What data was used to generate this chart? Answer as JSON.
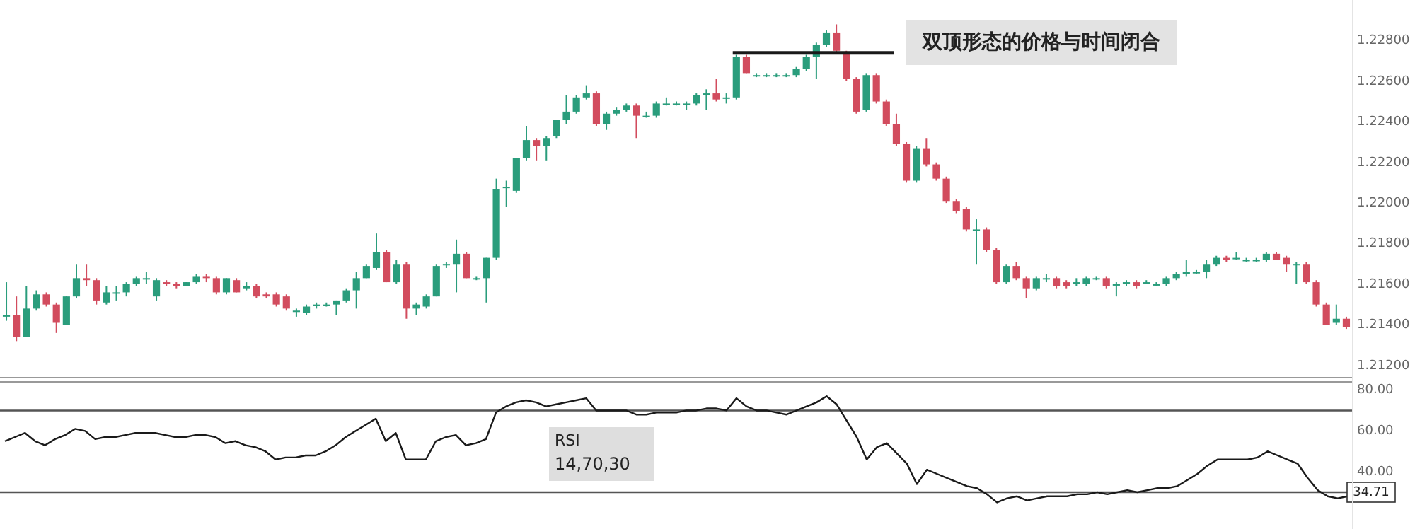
{
  "chart_data": [
    {
      "type": "candlestick",
      "tick_labels": "y",
      "categories": [
        null,
        null,
        null,
        null,
        null,
        null,
        null,
        null,
        null,
        null,
        null,
        null,
        null,
        null,
        null,
        null,
        null,
        null,
        null,
        null,
        null,
        null,
        null,
        null,
        null,
        null,
        null,
        null,
        null,
        null,
        null,
        null,
        null,
        null,
        null,
        null,
        null,
        null,
        null,
        null,
        null,
        null,
        null,
        null,
        null,
        null,
        null,
        null,
        null,
        null,
        null,
        null,
        null,
        null,
        null,
        null,
        null,
        null,
        null,
        null,
        null,
        null,
        null,
        null,
        null,
        null,
        null,
        null,
        null,
        null,
        null,
        null,
        null,
        null,
        null,
        null,
        null,
        null,
        null,
        null,
        null,
        null,
        null,
        null,
        null,
        null,
        null,
        null,
        null,
        null,
        null,
        null,
        null,
        null,
        null,
        null,
        null,
        null,
        null,
        null,
        null,
        null,
        null,
        null,
        null,
        null,
        null,
        null,
        null,
        null,
        null,
        null,
        null,
        null,
        null,
        null,
        null,
        null,
        null,
        null,
        null,
        null,
        null,
        null,
        null,
        null,
        null,
        null,
        null,
        null,
        null,
        null,
        null,
        null,
        null
      ],
      "ohlc": [
        [
          1.2144,
          1.2161,
          1.2142,
          1.2145
        ],
        [
          1.2145,
          1.2154,
          1.2132,
          1.2134
        ],
        [
          1.2134,
          1.2159,
          1.2134,
          1.2148
        ],
        [
          1.2148,
          1.2157,
          1.2147,
          1.2155
        ],
        [
          1.2155,
          1.2156,
          1.2149,
          1.215
        ],
        [
          1.215,
          1.2151,
          1.2136,
          1.2141
        ],
        [
          1.214,
          1.2154,
          1.214,
          1.2154
        ],
        [
          1.2154,
          1.217,
          1.2153,
          1.2163
        ],
        [
          1.2163,
          1.217,
          1.2159,
          1.2162
        ],
        [
          1.2162,
          1.2163,
          1.215,
          1.2152
        ],
        [
          1.2151,
          1.2159,
          1.215,
          1.2156
        ],
        [
          1.2156,
          1.2159,
          1.2152,
          1.2156
        ],
        [
          1.2156,
          1.2161,
          1.2154,
          1.216
        ],
        [
          1.216,
          1.2164,
          1.2159,
          1.2163
        ],
        [
          1.2163,
          1.2166,
          1.216,
          1.2163
        ],
        [
          1.2154,
          1.2163,
          1.2152,
          1.2162
        ],
        [
          1.2161,
          1.2162,
          1.2159,
          1.216
        ],
        [
          1.216,
          1.2161,
          1.2158,
          1.2159
        ],
        [
          1.2159,
          1.2161,
          1.2159,
          1.2161
        ],
        [
          1.2161,
          1.2165,
          1.216,
          1.2164
        ],
        [
          1.2164,
          1.2165,
          1.2161,
          1.2163
        ],
        [
          1.2163,
          1.2164,
          1.2155,
          1.2156
        ],
        [
          1.2156,
          1.2163,
          1.2155,
          1.2163
        ],
        [
          1.2162,
          1.2163,
          1.2156,
          1.2156
        ],
        [
          1.2158,
          1.2161,
          1.2157,
          1.2159
        ],
        [
          1.2159,
          1.216,
          1.2153,
          1.2154
        ],
        [
          1.2155,
          1.2156,
          1.2153,
          1.2154
        ],
        [
          1.2155,
          1.2156,
          1.2149,
          1.215
        ],
        [
          1.2154,
          1.2155,
          1.2147,
          1.2148
        ],
        [
          1.2147,
          1.2148,
          1.2144,
          1.2147
        ],
        [
          1.2146,
          1.215,
          1.2145,
          1.2149
        ],
        [
          1.215,
          1.2151,
          1.2148,
          1.215
        ],
        [
          1.215,
          1.2151,
          1.2149,
          1.215
        ],
        [
          1.215,
          1.2152,
          1.2145,
          1.2152
        ],
        [
          1.2152,
          1.2158,
          1.2151,
          1.2157
        ],
        [
          1.2157,
          1.2166,
          1.2148,
          1.2163
        ],
        [
          1.2163,
          1.217,
          1.2163,
          1.2169
        ],
        [
          1.2168,
          1.2185,
          1.2167,
          1.2176
        ],
        [
          1.2176,
          1.2177,
          1.2161,
          1.2161
        ],
        [
          1.2161,
          1.2172,
          1.216,
          1.217
        ],
        [
          1.217,
          1.2171,
          1.2143,
          1.2148
        ],
        [
          1.2148,
          1.2151,
          1.2145,
          1.215
        ],
        [
          1.2149,
          1.2155,
          1.2148,
          1.2154
        ],
        [
          1.2154,
          1.217,
          1.2154,
          1.2169
        ],
        [
          1.217,
          1.2171,
          1.2168,
          1.217
        ],
        [
          1.217,
          1.2182,
          1.2156,
          1.2175
        ],
        [
          1.2175,
          1.2176,
          1.2163,
          1.2163
        ],
        [
          1.2163,
          1.2164,
          1.2162,
          1.2163
        ],
        [
          1.2163,
          1.2173,
          1.2151,
          1.2173
        ],
        [
          1.2173,
          1.2212,
          1.2172,
          1.2207
        ],
        [
          1.2208,
          1.2211,
          1.2198,
          1.2208
        ],
        [
          1.2206,
          1.2222,
          1.2205,
          1.2222
        ],
        [
          1.2222,
          1.2238,
          1.2221,
          1.2231
        ],
        [
          1.2231,
          1.2232,
          1.2221,
          1.2228
        ],
        [
          1.2228,
          1.2233,
          1.2221,
          1.2232
        ],
        [
          1.2233,
          1.2241,
          1.2232,
          1.2241
        ],
        [
          1.2241,
          1.2253,
          1.2239,
          1.2245
        ],
        [
          1.2245,
          1.2253,
          1.2244,
          1.2252
        ],
        [
          1.2252,
          1.2258,
          1.2251,
          1.2254
        ],
        [
          1.2254,
          1.2255,
          1.2238,
          1.2239
        ],
        [
          1.2239,
          1.2245,
          1.2236,
          1.2244
        ],
        [
          1.2244,
          1.2247,
          1.2243,
          1.2246
        ],
        [
          1.2246,
          1.2249,
          1.2245,
          1.2248
        ],
        [
          1.2248,
          1.2249,
          1.2232,
          1.2243
        ],
        [
          1.2243,
          1.2245,
          1.2242,
          1.2243
        ],
        [
          1.2243,
          1.225,
          1.2242,
          1.2249
        ],
        [
          1.2249,
          1.2252,
          1.2248,
          1.2249
        ],
        [
          1.2249,
          1.225,
          1.2248,
          1.2249
        ],
        [
          1.2249,
          1.225,
          1.2246,
          1.2249
        ],
        [
          1.2249,
          1.2254,
          1.2248,
          1.2253
        ],
        [
          1.2253,
          1.2256,
          1.2246,
          1.2254
        ],
        [
          1.2254,
          1.2261,
          1.225,
          1.2251
        ],
        [
          1.2252,
          1.2254,
          1.2249,
          1.2252
        ],
        [
          1.2252,
          1.2273,
          1.2251,
          1.2272
        ],
        [
          1.2272,
          1.2273,
          1.2264,
          1.2264
        ],
        [
          1.2263,
          1.2264,
          1.2262,
          1.2263
        ],
        [
          1.2263,
          1.2264,
          1.2262,
          1.2263
        ],
        [
          1.2263,
          1.2264,
          1.2262,
          1.2263
        ],
        [
          1.2263,
          1.2264,
          1.2262,
          1.2263
        ],
        [
          1.2263,
          1.2267,
          1.2262,
          1.2266
        ],
        [
          1.2266,
          1.2273,
          1.2265,
          1.2272
        ],
        [
          1.2272,
          1.2279,
          1.2261,
          1.2278
        ],
        [
          1.2278,
          1.2285,
          1.2277,
          1.2284
        ],
        [
          1.2284,
          1.2288,
          1.2274,
          1.2275
        ],
        [
          1.2274,
          1.2275,
          1.226,
          1.2261
        ],
        [
          1.2261,
          1.2262,
          1.2244,
          1.2245
        ],
        [
          1.2246,
          1.2264,
          1.2245,
          1.2263
        ],
        [
          1.2263,
          1.2264,
          1.2249,
          1.225
        ],
        [
          1.225,
          1.2251,
          1.2238,
          1.2239
        ],
        [
          1.2239,
          1.2244,
          1.2228,
          1.2229
        ],
        [
          1.2229,
          1.223,
          1.221,
          1.2211
        ],
        [
          1.2211,
          1.2228,
          1.221,
          1.2227
        ],
        [
          1.2227,
          1.2232,
          1.2218,
          1.2219
        ],
        [
          1.2219,
          1.222,
          1.2211,
          1.2212
        ],
        [
          1.2212,
          1.2213,
          1.22,
          1.2201
        ],
        [
          1.2201,
          1.2202,
          1.2195,
          1.2196
        ],
        [
          1.2197,
          1.2198,
          1.2186,
          1.2187
        ],
        [
          1.2187,
          1.2192,
          1.217,
          1.2187
        ],
        [
          1.2187,
          1.2188,
          1.2176,
          1.2177
        ],
        [
          1.2177,
          1.2178,
          1.216,
          1.2161
        ],
        [
          1.2161,
          1.217,
          1.216,
          1.2169
        ],
        [
          1.2169,
          1.2171,
          1.2162,
          1.2163
        ],
        [
          1.2163,
          1.2164,
          1.2153,
          1.2158
        ],
        [
          1.2158,
          1.2164,
          1.2157,
          1.2163
        ],
        [
          1.2163,
          1.2165,
          1.2161,
          1.2163
        ],
        [
          1.2163,
          1.2164,
          1.2158,
          1.2159
        ],
        [
          1.2161,
          1.2162,
          1.2158,
          1.2159
        ],
        [
          1.2161,
          1.2163,
          1.2159,
          1.2161
        ],
        [
          1.216,
          1.2164,
          1.2159,
          1.2163
        ],
        [
          1.2163,
          1.2164,
          1.2162,
          1.2163
        ],
        [
          1.2163,
          1.2164,
          1.2158,
          1.2159
        ],
        [
          1.216,
          1.2161,
          1.2154,
          1.216
        ],
        [
          1.216,
          1.2162,
          1.2159,
          1.2161
        ],
        [
          1.2161,
          1.2162,
          1.2158,
          1.2159
        ],
        [
          1.2161,
          1.2162,
          1.216,
          1.2161
        ],
        [
          1.216,
          1.2161,
          1.2159,
          1.216
        ],
        [
          1.216,
          1.2164,
          1.2159,
          1.2163
        ],
        [
          1.2163,
          1.2166,
          1.2162,
          1.2165
        ],
        [
          1.2165,
          1.2172,
          1.2164,
          1.2166
        ],
        [
          1.2166,
          1.2167,
          1.2165,
          1.2166
        ],
        [
          1.2166,
          1.2172,
          1.2163,
          1.217
        ],
        [
          1.217,
          1.2174,
          1.2169,
          1.2173
        ],
        [
          1.2173,
          1.2174,
          1.2171,
          1.2172
        ],
        [
          1.2173,
          1.2176,
          1.2172,
          1.2173
        ],
        [
          1.2172,
          1.2173,
          1.2171,
          1.2172
        ],
        [
          1.2172,
          1.2173,
          1.2171,
          1.2172
        ],
        [
          1.2172,
          1.2176,
          1.2171,
          1.2175
        ],
        [
          1.2175,
          1.2176,
          1.2172,
          1.2172
        ],
        [
          1.2173,
          1.2174,
          1.2166,
          1.217
        ],
        [
          1.217,
          1.2171,
          1.216,
          1.217
        ],
        [
          1.217,
          1.2171,
          1.216,
          1.2161
        ],
        [
          1.2161,
          1.2162,
          1.2149,
          1.215
        ],
        [
          1.215,
          1.2151,
          1.214,
          1.214
        ],
        [
          1.2141,
          1.215,
          1.214,
          1.2143
        ],
        [
          1.2143,
          1.2144,
          1.2138,
          1.2139
        ]
      ],
      "colors": [
        "#2a9d7c",
        "#d24c5e",
        "#2a9d7c",
        "#2a9d7c",
        "#d24c5e",
        "#d24c5e",
        "#2a9d7c",
        "#2a9d7c",
        "#d24c5e",
        "#d24c5e",
        "#2a9d7c",
        "#2a9d7c",
        "#2a9d7c",
        "#2a9d7c",
        "#2a9d7c",
        "#2a9d7c",
        "#d24c5e",
        "#d24c5e",
        "#2a9d7c",
        "#2a9d7c",
        "#d24c5e",
        "#d24c5e",
        "#2a9d7c",
        "#d24c5e",
        "#2a9d7c",
        "#d24c5e",
        "#d24c5e",
        "#d24c5e",
        "#d24c5e",
        "#2a9d7c",
        "#2a9d7c",
        "#2a9d7c",
        "#2a9d7c",
        "#2a9d7c",
        "#2a9d7c",
        "#2a9d7c",
        "#2a9d7c",
        "#2a9d7c",
        "#d24c5e",
        "#2a9d7c",
        "#d24c5e",
        "#2a9d7c",
        "#2a9d7c",
        "#2a9d7c",
        "#2a9d7c",
        "#2a9d7c",
        "#d24c5e",
        "#2a9d7c",
        "#2a9d7c",
        "#2a9d7c",
        "#2a9d7c",
        "#2a9d7c",
        "#2a9d7c",
        "#d24c5e",
        "#2a9d7c",
        "#2a9d7c",
        "#2a9d7c",
        "#2a9d7c",
        "#2a9d7c",
        "#d24c5e",
        "#2a9d7c",
        "#2a9d7c",
        "#2a9d7c",
        "#d24c5e",
        "#2a9d7c",
        "#2a9d7c",
        "#2a9d7c",
        "#2a9d7c",
        "#2a9d7c",
        "#2a9d7c",
        "#2a9d7c",
        "#d24c5e",
        "#2a9d7c",
        "#2a9d7c",
        "#d24c5e",
        "#2a9d7c",
        "#2a9d7c",
        "#2a9d7c",
        "#2a9d7c",
        "#2a9d7c",
        "#2a9d7c",
        "#2a9d7c",
        "#2a9d7c",
        "#d24c5e",
        "#d24c5e",
        "#d24c5e",
        "#2a9d7c",
        "#d24c5e",
        "#d24c5e",
        "#d24c5e",
        "#d24c5e",
        "#2a9d7c",
        "#d24c5e",
        "#d24c5e",
        "#d24c5e",
        "#d24c5e",
        "#d24c5e",
        "#2a9d7c",
        "#d24c5e",
        "#d24c5e",
        "#2a9d7c",
        "#d24c5e",
        "#d24c5e",
        "#2a9d7c",
        "#2a9d7c",
        "#d24c5e",
        "#d24c5e",
        "#2a9d7c",
        "#2a9d7c",
        "#2a9d7c",
        "#d24c5e",
        "#2a9d7c",
        "#2a9d7c",
        "#d24c5e",
        "#2a9d7c",
        "#2a9d7c",
        "#2a9d7c",
        "#2a9d7c",
        "#2a9d7c",
        "#2a9d7c",
        "#2a9d7c",
        "#2a9d7c",
        "#d24c5e",
        "#2a9d7c",
        "#2a9d7c",
        "#2a9d7c",
        "#2a9d7c",
        "#d24c5e",
        "#d24c5e",
        "#2a9d7c",
        "#d24c5e",
        "#d24c5e",
        "#d24c5e",
        "#2a9d7c",
        "#d24c5e"
      ],
      "ylim": [
        1.2114,
        1.23
      ],
      "yticks": [
        {
          "value": 1.212,
          "label": "1.21200"
        },
        {
          "value": 1.214,
          "label": "1.21400"
        },
        {
          "value": 1.216,
          "label": "1.21600"
        },
        {
          "value": 1.218,
          "label": "1.21800"
        },
        {
          "value": 1.22,
          "label": "1.22000"
        },
        {
          "value": 1.222,
          "label": "1.22200"
        },
        {
          "value": 1.224,
          "label": "1.22400"
        },
        {
          "value": 1.226,
          "label": "1.22600"
        },
        {
          "value": 1.228,
          "label": "1.22800"
        }
      ],
      "ref_lines": [
        {
          "axis": "y",
          "value": 1.2274,
          "label": "双顶形态的价格与时间闭合",
          "color": "#1a1a1a"
        }
      ]
    },
    {
      "type": "line",
      "title": "RSI",
      "subtitle": "14,70,30",
      "tick_labels": "y",
      "categories": [
        null,
        null,
        null,
        null,
        null,
        null,
        null,
        null,
        null,
        null,
        null,
        null,
        null,
        null,
        null,
        null,
        null,
        null,
        null,
        null,
        null,
        null,
        null,
        null,
        null,
        null,
        null,
        null,
        null,
        null,
        null,
        null,
        null,
        null,
        null,
        null,
        null,
        null,
        null,
        null,
        null,
        null,
        null,
        null,
        null,
        null,
        null,
        null,
        null,
        null,
        null,
        null,
        null,
        null,
        null,
        null,
        null,
        null,
        null,
        null,
        null,
        null,
        null,
        null,
        null,
        null,
        null,
        null,
        null,
        null,
        null,
        null,
        null,
        null,
        null,
        null,
        null,
        null,
        null,
        null,
        null,
        null,
        null,
        null,
        null,
        null,
        null,
        null,
        null,
        null,
        null,
        null,
        null,
        null,
        null,
        null,
        null,
        null,
        null,
        null,
        null,
        null,
        null,
        null,
        null,
        null,
        null,
        null,
        null,
        null,
        null,
        null,
        null,
        null,
        null,
        null,
        null,
        null,
        null,
        null,
        null,
        null,
        null,
        null,
        null,
        null,
        null,
        null,
        null,
        null,
        null,
        null,
        null,
        null,
        null
      ],
      "series": [
        {
          "color": "#1a1a1a",
          "values": [
            55,
            57,
            59,
            55,
            53,
            56,
            58,
            61,
            60,
            56,
            57,
            57,
            58,
            59,
            59,
            59,
            58,
            57,
            57,
            58,
            58,
            57,
            54,
            55,
            53,
            52,
            50,
            46,
            47,
            47,
            48,
            48,
            50,
            53,
            57,
            60,
            63,
            66,
            55,
            59,
            46,
            46,
            46,
            55,
            57,
            58,
            53,
            54,
            56,
            69,
            72,
            74,
            75,
            74,
            72,
            73,
            74,
            75,
            76,
            70,
            70,
            70,
            70,
            68,
            68,
            69,
            69,
            69,
            70,
            70,
            71,
            71,
            70,
            76,
            72,
            70,
            70,
            69,
            68,
            70,
            72,
            74,
            77,
            73,
            65,
            57,
            46,
            52,
            54,
            49,
            44,
            34,
            41,
            39,
            37,
            35,
            33,
            32,
            29,
            25,
            27,
            28,
            26,
            27,
            28,
            28,
            28,
            29,
            29,
            30,
            29,
            30,
            31,
            30,
            31,
            32,
            32,
            33,
            36,
            39,
            43,
            46,
            46,
            46,
            46,
            47,
            50,
            48,
            46,
            44,
            37,
            31,
            28,
            27,
            28
          ]
        }
      ],
      "ylim": [
        12,
        84
      ],
      "yticks": [
        {
          "value": 40,
          "label": "40.00"
        },
        {
          "value": 60,
          "label": "60.00"
        },
        {
          "value": 80,
          "label": "80.00"
        }
      ],
      "ref_lines": [
        {
          "axis": "y",
          "value": 70,
          "color": "#555555"
        },
        {
          "axis": "y",
          "value": 30,
          "color": "#555555"
        }
      ],
      "annotations": [
        "34.71"
      ]
    }
  ]
}
